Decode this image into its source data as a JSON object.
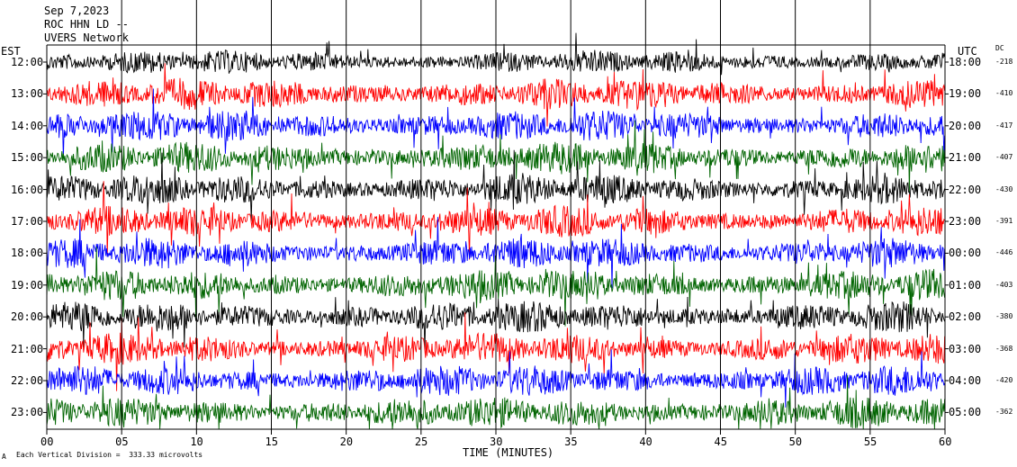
{
  "header": {
    "date": "Sep 7,2023",
    "station": "ROC HHN LD --",
    "network": "UVERS Network"
  },
  "left_axis_label": "EST",
  "right_axis_label": "UTC",
  "dc_label": "DC",
  "footer": {
    "note": "Each Vertical Division =  333.33 microvolts",
    "corner_mark": "A"
  },
  "colors": {
    "black": "#000000",
    "red": "#ff0000",
    "blue": "#0000ff",
    "green": "#006400"
  },
  "chart_data": {
    "type": "line",
    "xlabel": "TIME (MINUTES)",
    "xlim": [
      0,
      60
    ],
    "x_ticks": [
      "00",
      "05",
      "10",
      "15",
      "20",
      "25",
      "30",
      "35",
      "40",
      "45",
      "50",
      "55",
      "60"
    ],
    "grid": "vertical lines every 5 minutes",
    "traces": [
      {
        "est": "12:00",
        "utc": "18:00",
        "dc": "-218",
        "color": "black"
      },
      {
        "est": "13:00",
        "utc": "19:00",
        "dc": "-410",
        "color": "red"
      },
      {
        "est": "14:00",
        "utc": "20:00",
        "dc": "-417",
        "color": "blue"
      },
      {
        "est": "15:00",
        "utc": "21:00",
        "dc": "-407",
        "color": "green"
      },
      {
        "est": "16:00",
        "utc": "22:00",
        "dc": "-430",
        "color": "black"
      },
      {
        "est": "17:00",
        "utc": "23:00",
        "dc": "-391",
        "color": "red"
      },
      {
        "est": "18:00",
        "utc": "00:00",
        "dc": "-446",
        "color": "blue"
      },
      {
        "est": "19:00",
        "utc": "01:00",
        "dc": "-403",
        "color": "green"
      },
      {
        "est": "20:00",
        "utc": "02:00",
        "dc": "-380",
        "color": "black"
      },
      {
        "est": "21:00",
        "utc": "03:00",
        "dc": "-368",
        "color": "red"
      },
      {
        "est": "22:00",
        "utc": "04:00",
        "dc": "-420",
        "color": "blue"
      },
      {
        "est": "23:00",
        "utc": "05:00",
        "dc": "-362",
        "color": "green"
      }
    ]
  }
}
